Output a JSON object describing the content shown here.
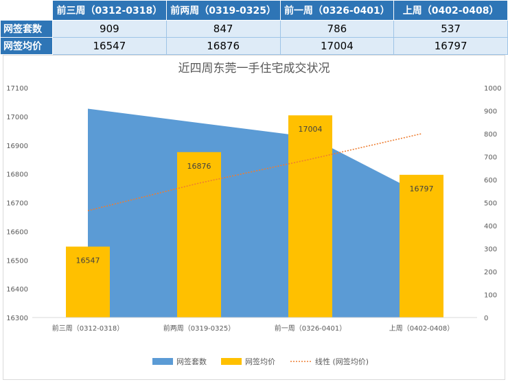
{
  "table": {
    "headers": [
      "前三周（0312-0318）",
      "前两周（0319-0325）",
      "前一周（0326-0401）",
      "上周（0402-0408）"
    ],
    "rows": [
      {
        "label": "网签套数",
        "values": [
          "909",
          "847",
          "786",
          "537"
        ]
      },
      {
        "label": "网签均价",
        "values": [
          "16547",
          "16876",
          "17004",
          "16797"
        ]
      }
    ]
  },
  "colors": {
    "area": "#5b9bd5",
    "bar": "#ffc000",
    "trend": "#ed7d31",
    "header": "#2e75b6",
    "cell": "#deebf7"
  },
  "chart_data": {
    "type": "bar",
    "title": "近四周东莞一手住宅成交状况",
    "categories": [
      "前三周（0312-0318）",
      "前两周（0319-0325）",
      "前一周（0326-0401）",
      "上周（0402-0408）"
    ],
    "series": [
      {
        "name": "网签套数",
        "type": "area",
        "axis": "right",
        "values": [
          909,
          847,
          786,
          537
        ]
      },
      {
        "name": "网签均价",
        "type": "bar",
        "axis": "left",
        "values": [
          16547,
          16876,
          17004,
          16797
        ],
        "data_labels": [
          "16547",
          "16876",
          "17004",
          "16797"
        ]
      },
      {
        "name": "线性 (网签均价)",
        "type": "linear-trendline",
        "axis": "right",
        "values": [
          465,
          585,
          689,
          800
        ]
      }
    ],
    "left_axis": {
      "min": 16300,
      "max": 17100,
      "ticks": [
        "16300",
        "16400",
        "16500",
        "16600",
        "16700",
        "16800",
        "16900",
        "17000",
        "17100"
      ]
    },
    "right_axis": {
      "min": 0,
      "max": 1000,
      "ticks": [
        "0",
        "100",
        "200",
        "300",
        "400",
        "500",
        "600",
        "700",
        "800",
        "900",
        "1000"
      ]
    },
    "legend_position": "bottom",
    "grid": false
  }
}
